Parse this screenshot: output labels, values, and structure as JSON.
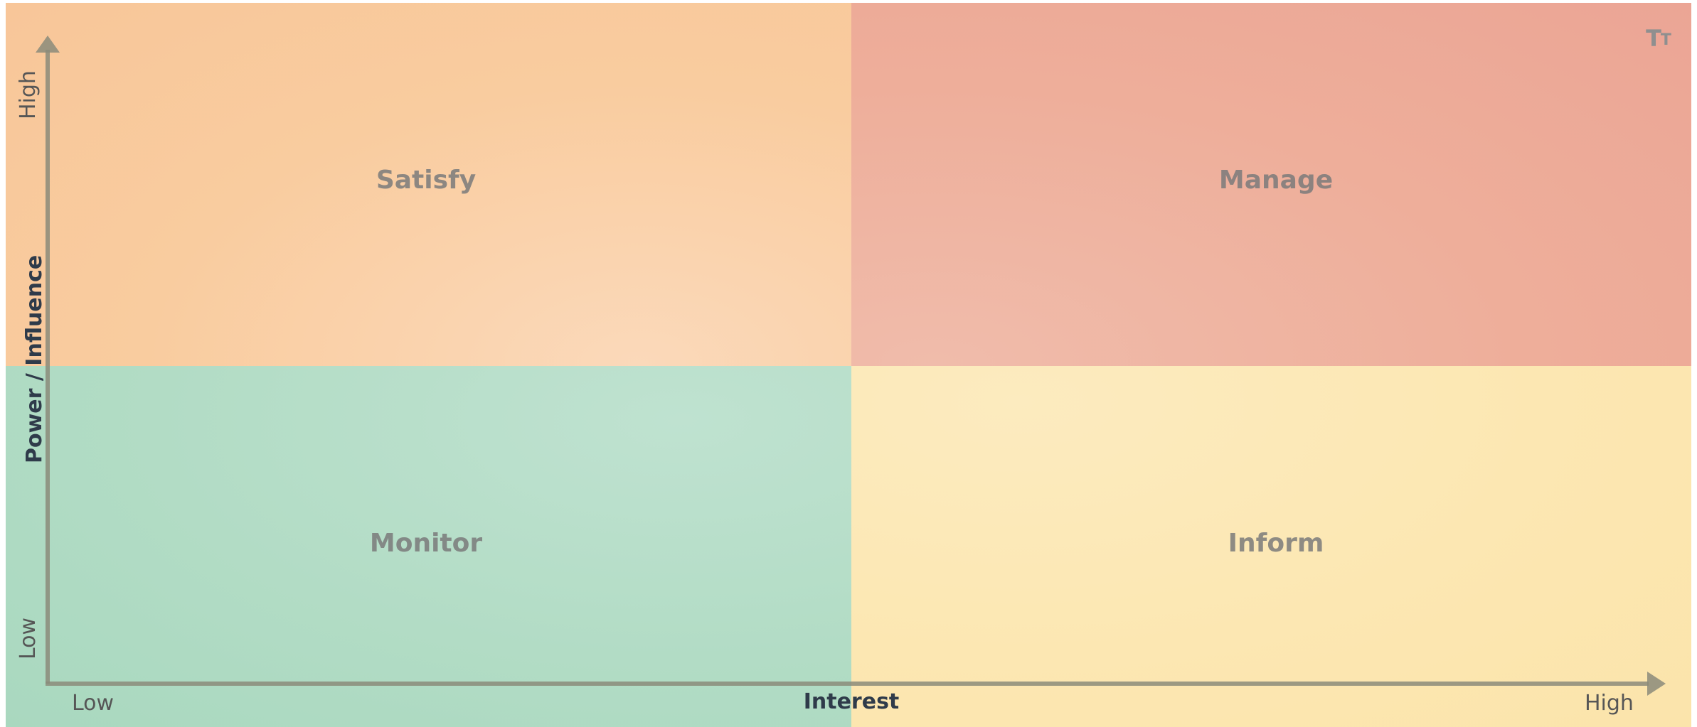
{
  "diagram": {
    "type": "2x2 matrix",
    "quadrants": [
      {
        "id": "top-left",
        "label": "Satisfy",
        "color": "#f9c99b"
      },
      {
        "id": "top-right",
        "label": "Manage",
        "color": "#eeaa97"
      },
      {
        "id": "bottom-left",
        "label": "Monitor",
        "color": "#aedbc3"
      },
      {
        "id": "bottom-right",
        "label": "Inform",
        "color": "#fce6ae"
      }
    ],
    "x_axis": {
      "title": "Interest",
      "low_label": "Low",
      "high_label": "High"
    },
    "y_axis": {
      "title": "Power / Influence",
      "low_label": "Low",
      "high_label": "High"
    },
    "axis_color": "#8b8b7a"
  },
  "toolbar": {
    "text_tool_icon": "text-size-icon"
  }
}
